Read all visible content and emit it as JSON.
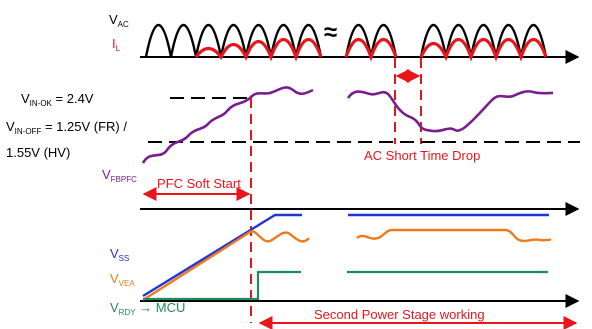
{
  "signals": {
    "vac": {
      "main": "V",
      "sub": "AC"
    },
    "il": {
      "main": "I",
      "sub": "L"
    },
    "vin_ok": {
      "main": "V",
      "sub": "IN-OK",
      "value": " = 2.4V"
    },
    "vin_off": {
      "main": "V",
      "sub": "IN-OFF",
      "value": " = 1.25V (FR) /"
    },
    "vin_off_hv": {
      "value": "1.55V (HV)"
    },
    "vfbpfc": {
      "main": "V",
      "sub": "FBPFC"
    },
    "vss": {
      "main": "V",
      "sub": "SS"
    },
    "vvea": {
      "main": "V",
      "sub": "VEA"
    },
    "vrdy": {
      "main": "V",
      "sub": "RDY",
      "suffix": " → MCU"
    }
  },
  "annotations": {
    "break_symbol": "≈",
    "ac_drop": "AC Short Time Drop",
    "soft_start": "PFC Soft Start",
    "second_stage": "Second Power Stage working"
  },
  "colors": {
    "black": "#000000",
    "red": "#e8161c",
    "purple": "#7a1e8f",
    "blue": "#1e37d4",
    "orange": "#f07a1a",
    "green": "#1f8a5b"
  }
}
